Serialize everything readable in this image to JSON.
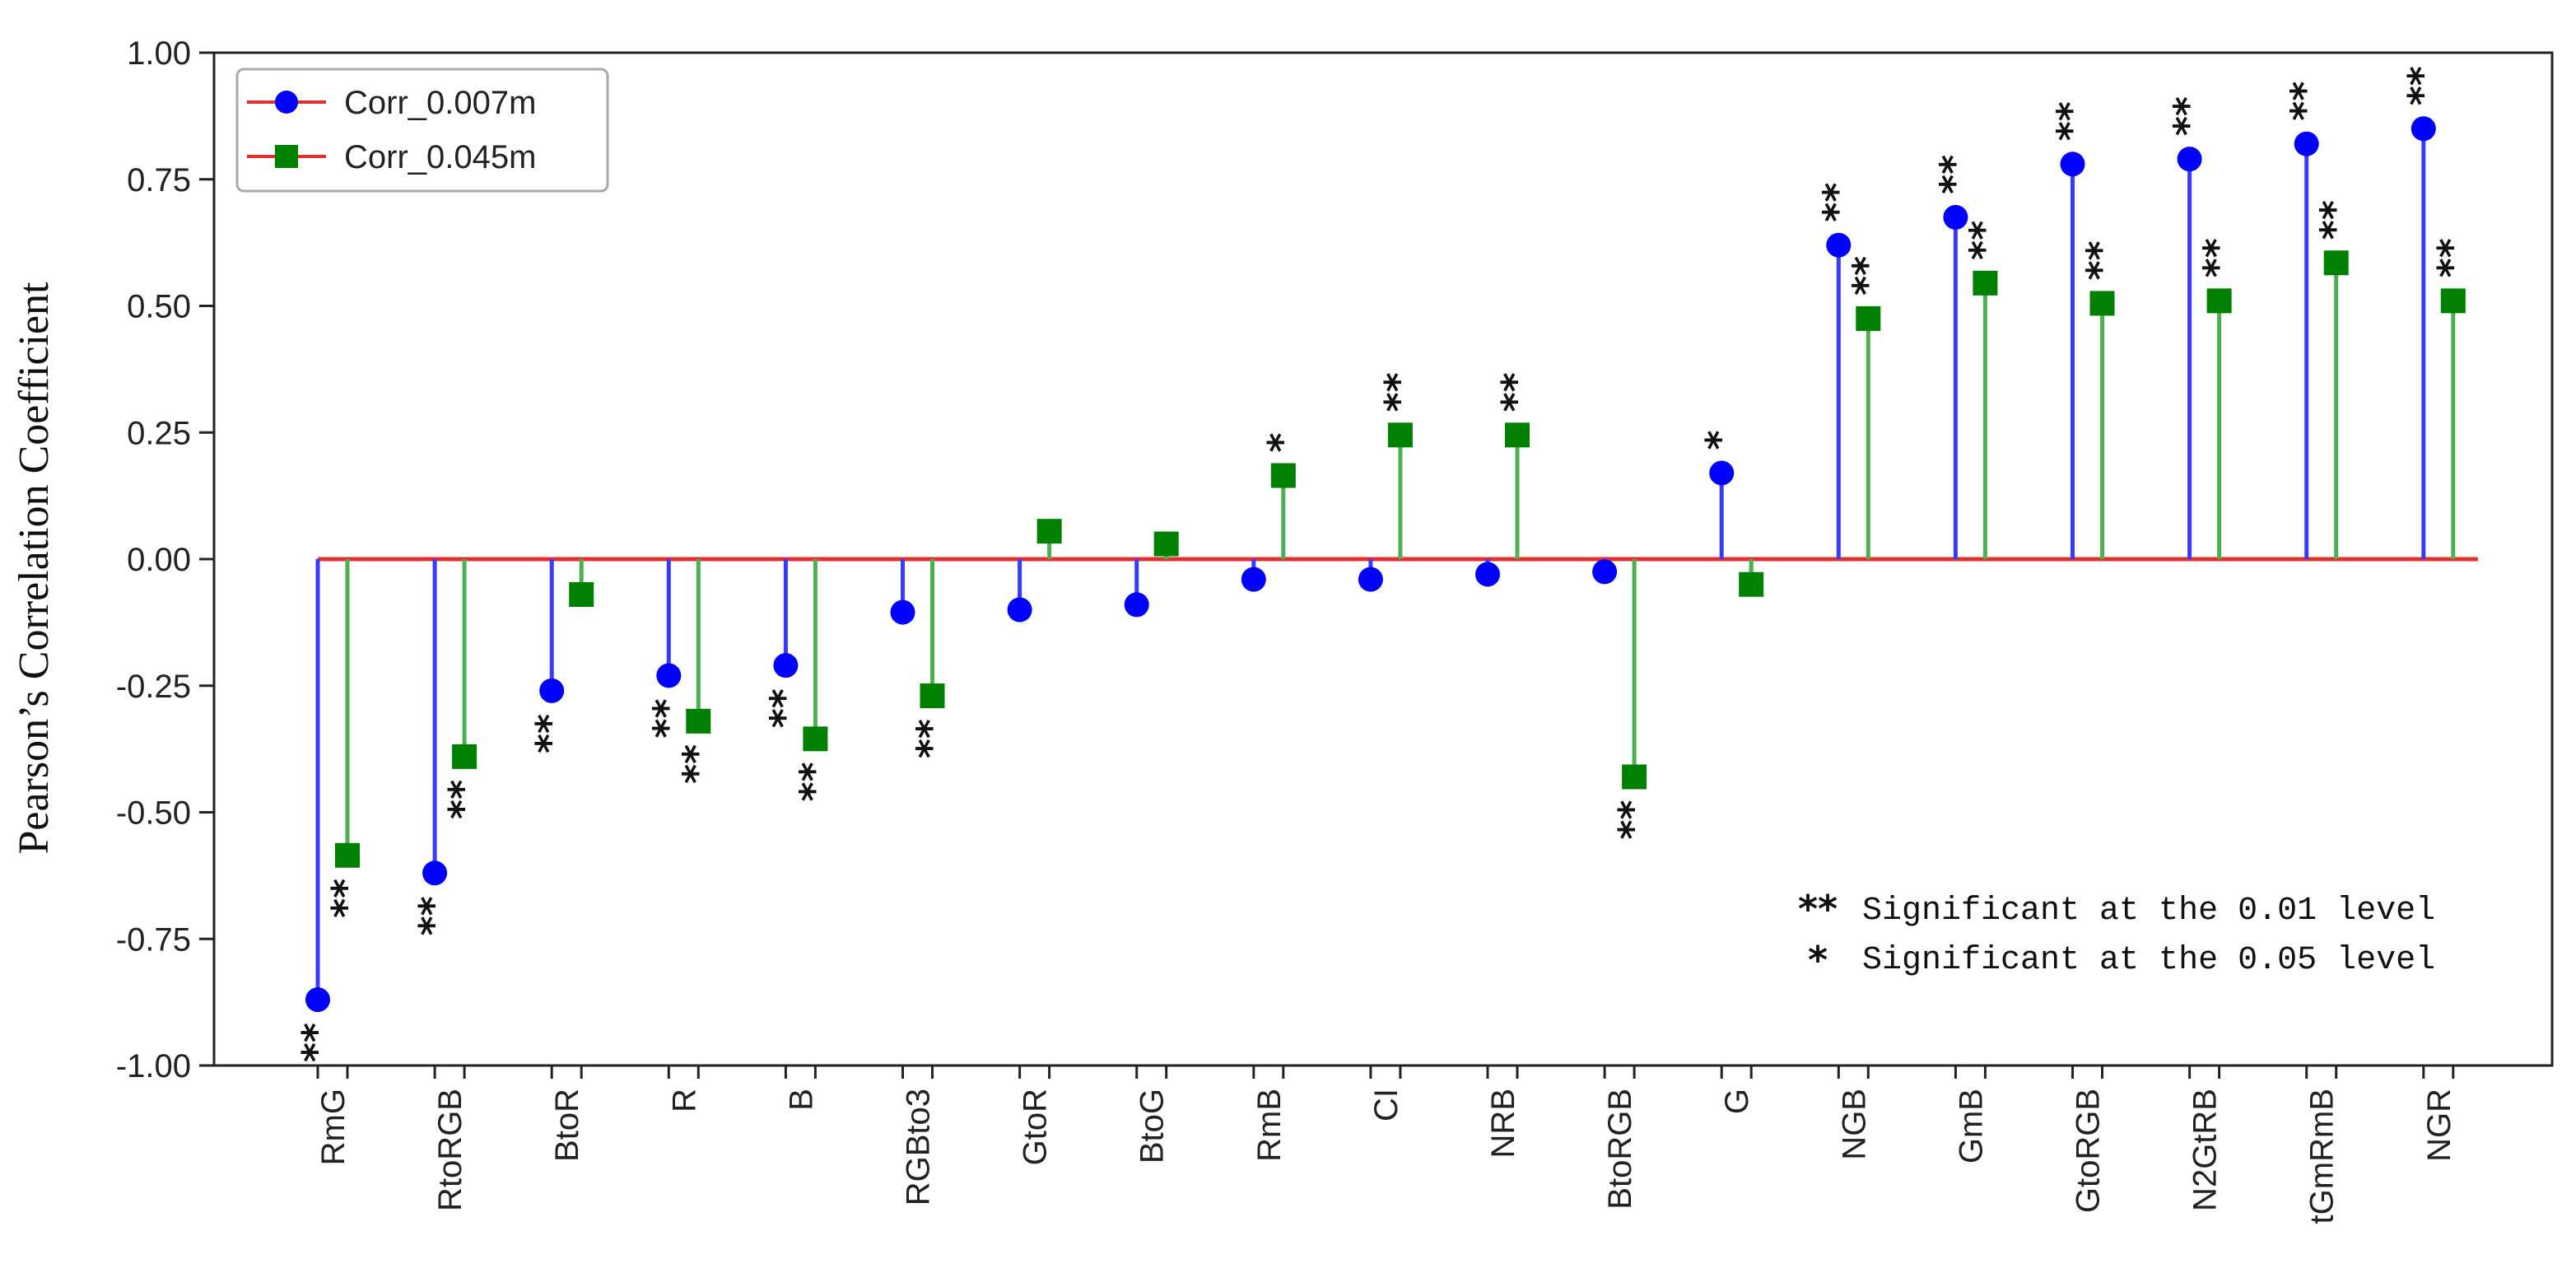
{
  "chart_data": {
    "type": "stem",
    "ylabel": "Pearson’s Correlation Coefficient",
    "ylim": [
      -1.0,
      1.0
    ],
    "yticks": [
      "1.00",
      "0.75",
      "0.50",
      "0.25",
      "0.00",
      "-0.25",
      "-0.50",
      "-0.75",
      "-1.00"
    ],
    "yticks_values": [
      1.0,
      0.75,
      0.5,
      0.25,
      0.0,
      -0.25,
      -0.5,
      -0.75,
      -1.0
    ],
    "categories": [
      "RmG",
      "RtoRGB",
      "BtoR",
      "R",
      "B",
      "RGBto3",
      "GtoR",
      "BtoG",
      "RmB",
      "CI",
      "NRB",
      "BtoRGB",
      "G",
      "NGB",
      "GmB",
      "GtoRGB",
      "N2GtRB",
      "tGmRmB",
      "NGR"
    ],
    "series": [
      {
        "name": "Corr_0.007m",
        "color": "#0000ff",
        "stem_color": "#3a3aff",
        "marker": "circle",
        "values": [
          -0.87,
          -0.62,
          -0.26,
          -0.23,
          -0.21,
          -0.105,
          -0.1,
          -0.09,
          -0.04,
          -0.04,
          -0.03,
          -0.025,
          0.17,
          0.62,
          0.675,
          0.78,
          0.79,
          0.82,
          0.85
        ],
        "significance": [
          "**",
          "**",
          "**",
          "**",
          "**",
          "",
          "",
          "",
          "",
          "",
          "",
          "",
          "*",
          "**",
          "**",
          "**",
          "**",
          "**",
          "**"
        ]
      },
      {
        "name": "Corr_0.045m",
        "color": "#008000",
        "stem_color": "#4caf50",
        "marker": "square",
        "values": [
          -0.585,
          -0.39,
          -0.07,
          -0.32,
          -0.355,
          -0.27,
          0.055,
          0.03,
          0.165,
          0.245,
          0.245,
          -0.43,
          -0.05,
          0.475,
          0.545,
          0.505,
          0.51,
          0.585,
          0.51
        ],
        "significance": [
          "**",
          "**",
          "",
          "**",
          "**",
          "**",
          "",
          "",
          "*",
          "**",
          "**",
          "**",
          "",
          "**",
          "**",
          "**",
          "**",
          "**",
          "**"
        ]
      }
    ],
    "baseline": {
      "value": 0.0,
      "color": "#e03030"
    },
    "legend": {
      "position": "top-left",
      "entries": [
        "Corr_0.007m",
        "Corr_0.045m"
      ],
      "line_color": "#e03030"
    },
    "annotations": [
      {
        "symbol": "**",
        "text": "Significant at the 0.01 level"
      },
      {
        "symbol": "*",
        "text": "Significant at the 0.05 level"
      }
    ]
  }
}
